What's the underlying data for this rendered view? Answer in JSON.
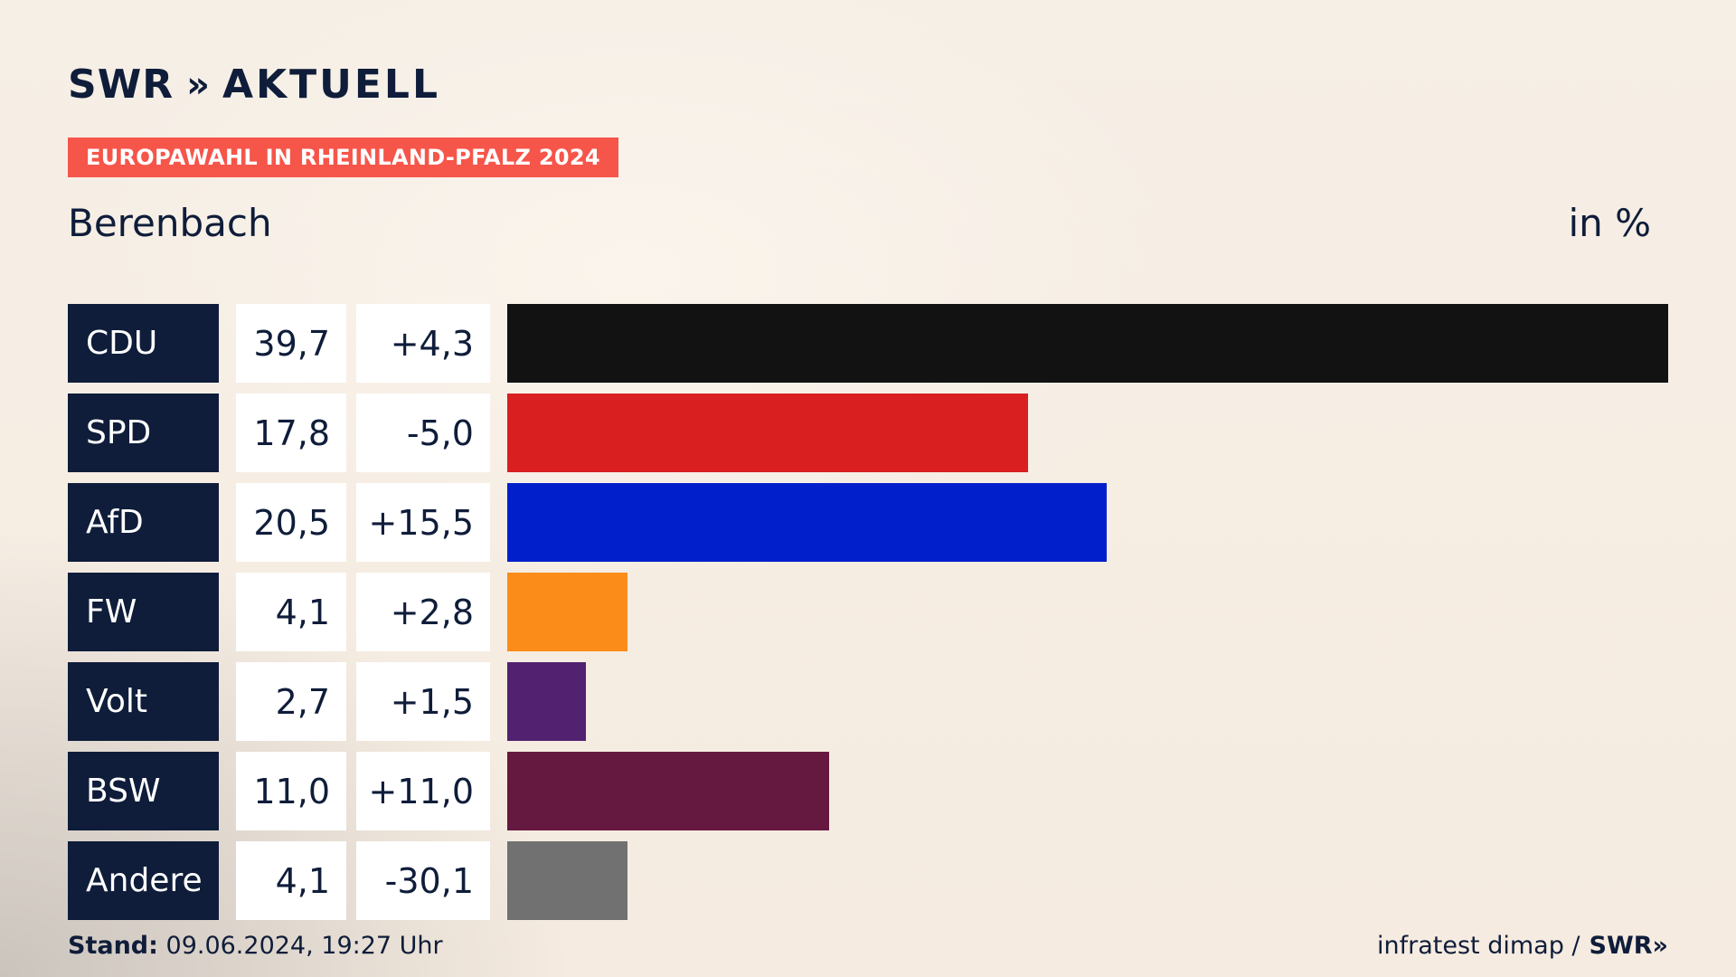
{
  "header": {
    "logo_text": "SWR",
    "logo_chevrons": "»",
    "logo_suffix": "AKTUELL",
    "tag": "EUROPAWAHL IN RHEINLAND-PFALZ 2024",
    "location": "Berenbach",
    "unit": "in %"
  },
  "chart_data": {
    "type": "bar",
    "orientation": "horizontal",
    "categories": [
      "CDU",
      "SPD",
      "AfD",
      "FW",
      "Volt",
      "BSW",
      "Andere"
    ],
    "values": [
      39.7,
      17.8,
      20.5,
      4.1,
      2.7,
      11.0,
      4.1
    ],
    "values_label": [
      "39,7",
      "17,8",
      "20,5",
      "4,1",
      "2,7",
      "11,0",
      "4,1"
    ],
    "diff_label": [
      "+4,3",
      "-5,0",
      "+15,5",
      "+2,8",
      "+1,5",
      "+11,0",
      "-30,1"
    ],
    "colors": [
      "#121212",
      "#d91f1f",
      "#0120cc",
      "#fb8c19",
      "#52216f",
      "#661940",
      "#717171"
    ],
    "xlim": [
      0,
      39.7
    ]
  },
  "footer": {
    "stand_label": "Stand:",
    "stand_value": "09.06.2024, 19:27 Uhr",
    "source": "infratest dimap /",
    "source_brand": "SWR»"
  }
}
